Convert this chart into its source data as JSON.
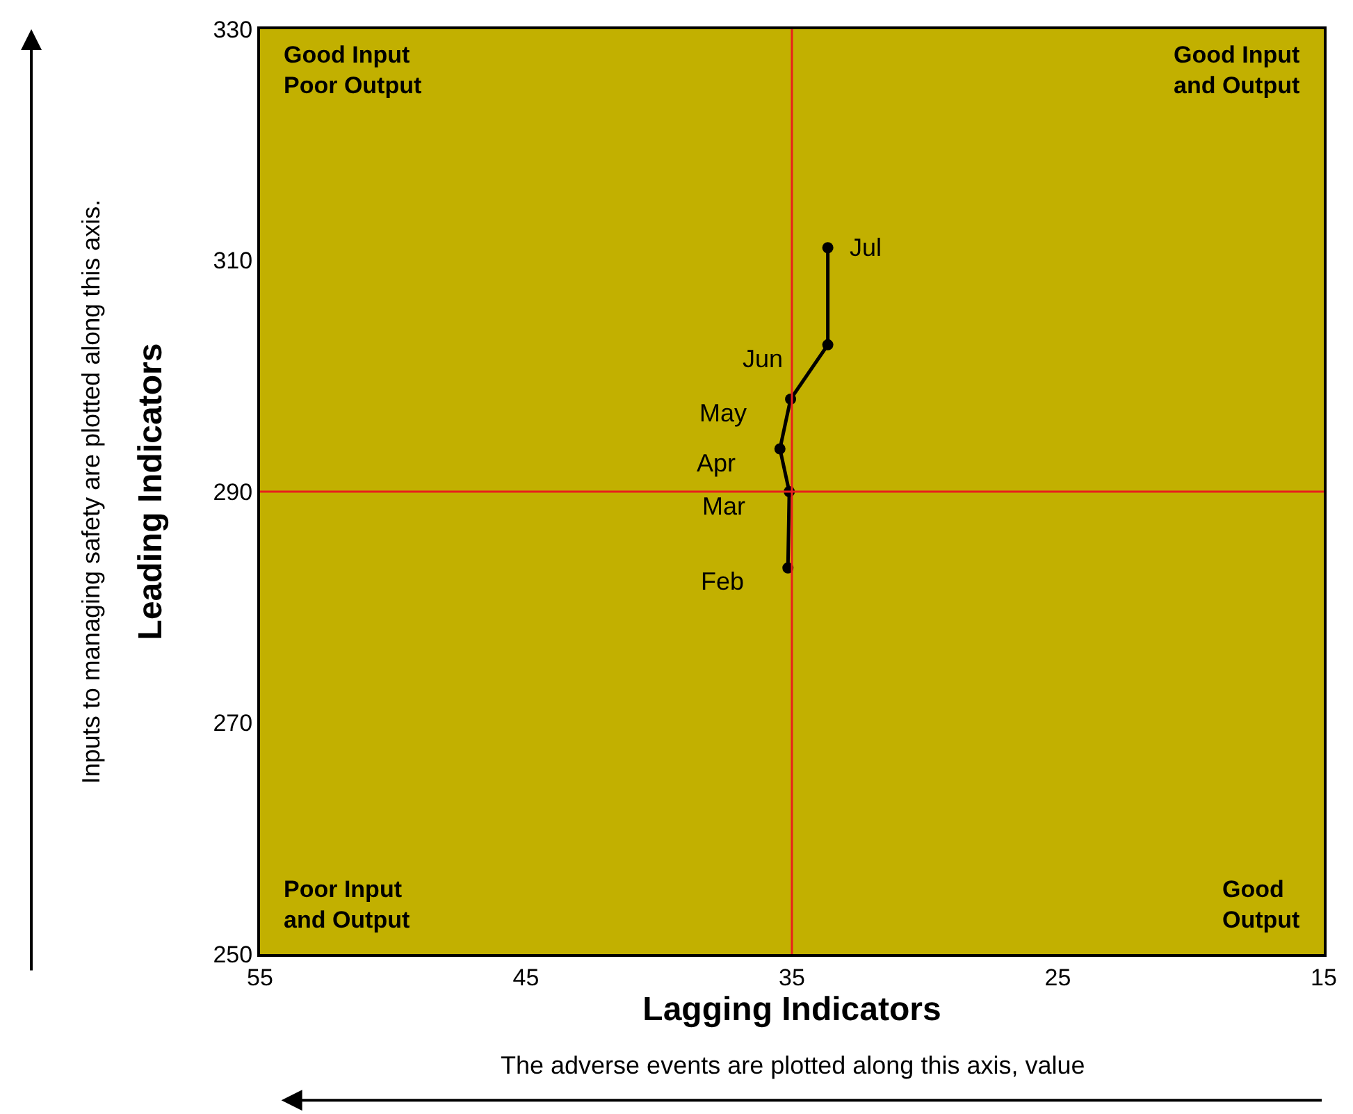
{
  "chart_data": {
    "type": "line",
    "xlabel": "Lagging Indicators",
    "ylabel": "Leading Indicators",
    "x": [
      35.15,
      35.1,
      35.45,
      35.05,
      33.65,
      33.65
    ],
    "series": [
      {
        "color": "#000000",
        "values": [
          283.4,
          290,
          293.7,
          298,
          302.7,
          311.1
        ]
      }
    ],
    "marker": "circle",
    "line_style": "solid",
    "xlim": [
      55,
      15
    ],
    "xticks": [
      55,
      45,
      35,
      25,
      15
    ],
    "ylim": [
      250,
      330
    ],
    "yticks": [
      250,
      270,
      290,
      310,
      330
    ],
    "grid": false,
    "ref_lines": [
      {
        "axis": "x",
        "value": 35,
        "color": "#e8201c"
      },
      {
        "axis": "y",
        "value": 290,
        "color": "#e8201c"
      }
    ],
    "annotations": [
      {
        "text": "Feb",
        "x": 35.15,
        "y": 283.4
      },
      {
        "text": "Mar",
        "x": 35.1,
        "y": 290
      },
      {
        "text": "Apr",
        "x": 35.45,
        "y": 293.7
      },
      {
        "text": "May",
        "x": 35.05,
        "y": 298
      },
      {
        "text": "Jun",
        "x": 33.65,
        "y": 302.7
      },
      {
        "text": "Jul",
        "x": 33.65,
        "y": 311.1
      },
      "Good Input\nPoor Output",
      "Good Input\nand Output",
      "Poor Input\nand Output",
      "Good\nOutput",
      "Inputs to managing safety are plotted along this axis.",
      "The adverse events are plotted along this axis, value"
    ]
  }
}
